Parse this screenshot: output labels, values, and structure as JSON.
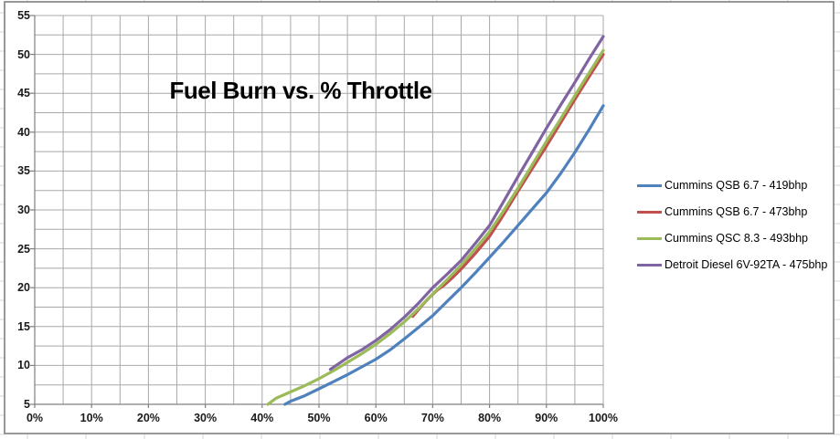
{
  "window": {
    "background_color": "#FFFFFF",
    "worksheet_gridline_color": "#D6D6D6",
    "chart_border_color": "#7F7F7F"
  },
  "colors": {
    "plot_gridline": "#A8A8A8",
    "axis_line": "#808080",
    "tick_mark": "#808080",
    "title_text": "#000000",
    "axis_label_text": "#1A1A1A",
    "legend_text": "#000000"
  },
  "chart_data": {
    "type": "line",
    "title": "Fuel Burn vs. % Throttle",
    "xlabel": "",
    "ylabel": "",
    "grid": "on",
    "legend_position": "right",
    "x_axis": {
      "min": 0,
      "max": 100,
      "tick_step_pct": 10,
      "gridline_step_pct": 5,
      "tick_labels": [
        "0%",
        "10%",
        "20%",
        "30%",
        "40%",
        "50%",
        "60%",
        "70%",
        "80%",
        "90%",
        "100%"
      ]
    },
    "y_axis": {
      "min": 5,
      "max": 55,
      "tick_step": 5,
      "gridline_step": 2.5,
      "tick_labels": [
        "5",
        "10",
        "15",
        "20",
        "25",
        "30",
        "35",
        "40",
        "45",
        "50",
        "55"
      ]
    },
    "series": [
      {
        "name": "Cummins QSB 6.7 - 419bhp",
        "color": "#4F81BD",
        "points": [
          [
            44,
            5.0
          ],
          [
            45,
            5.4
          ],
          [
            47.5,
            6.1
          ],
          [
            50,
            7.0
          ],
          [
            52.5,
            7.9
          ],
          [
            55,
            8.8
          ],
          [
            57.5,
            9.8
          ],
          [
            60,
            10.8
          ],
          [
            62.5,
            12.0
          ],
          [
            65,
            13.4
          ],
          [
            67.5,
            14.9
          ],
          [
            70,
            16.4
          ],
          [
            72.5,
            18.2
          ],
          [
            75,
            20.0
          ],
          [
            77.5,
            21.9
          ],
          [
            80,
            23.9
          ],
          [
            82.5,
            25.9
          ],
          [
            85,
            28.0
          ],
          [
            87.5,
            30.1
          ],
          [
            90,
            32.2
          ],
          [
            92.5,
            34.7
          ],
          [
            95,
            37.4
          ],
          [
            97.5,
            40.3
          ],
          [
            100,
            43.4
          ]
        ]
      },
      {
        "name": "Cummins QSB 6.7 - 473bhp",
        "color": "#C0504D",
        "points": [
          [
            66.5,
            16.3
          ],
          [
            68,
            17.6
          ],
          [
            69.5,
            18.8
          ],
          [
            70.8,
            19.7
          ],
          [
            72,
            20.3
          ],
          [
            73.5,
            21.3
          ],
          [
            75,
            22.4
          ],
          [
            77.5,
            24.4
          ],
          [
            80,
            26.6
          ],
          [
            82.5,
            29.4
          ],
          [
            85,
            32.4
          ],
          [
            87.5,
            35.3
          ],
          [
            90,
            38.2
          ],
          [
            92.5,
            41.2
          ],
          [
            95,
            44.2
          ],
          [
            97.5,
            47.1
          ],
          [
            100,
            50.0
          ]
        ]
      },
      {
        "name": "Cummins QSC 8.3 - 493bhp",
        "color": "#9BBB59",
        "points": [
          [
            41,
            5.0
          ],
          [
            42.5,
            5.8
          ],
          [
            45,
            6.6
          ],
          [
            47.5,
            7.4
          ],
          [
            50,
            8.3
          ],
          [
            52.5,
            9.3
          ],
          [
            55,
            10.4
          ],
          [
            57.5,
            11.5
          ],
          [
            60,
            12.7
          ],
          [
            62.5,
            14.1
          ],
          [
            65,
            15.6
          ],
          [
            67.5,
            17.3
          ],
          [
            70,
            19.2
          ],
          [
            72.5,
            21.0
          ],
          [
            75,
            22.9
          ],
          [
            77.5,
            25.0
          ],
          [
            80,
            27.2
          ],
          [
            82.5,
            29.9
          ],
          [
            85,
            32.8
          ],
          [
            87.5,
            35.8
          ],
          [
            90,
            38.8
          ],
          [
            92.5,
            41.7
          ],
          [
            95,
            44.7
          ],
          [
            97.5,
            47.6
          ],
          [
            100,
            50.5
          ]
        ]
      },
      {
        "name": "Detroit Diesel 6V-92TA - 475bhp",
        "color": "#8064A2",
        "points": [
          [
            52,
            9.5
          ],
          [
            55,
            11.0
          ],
          [
            57.5,
            12.0
          ],
          [
            60,
            13.2
          ],
          [
            62.5,
            14.6
          ],
          [
            65,
            16.2
          ],
          [
            67.5,
            18.0
          ],
          [
            70,
            20.0
          ],
          [
            72.5,
            21.7
          ],
          [
            75,
            23.5
          ],
          [
            77.5,
            25.7
          ],
          [
            80,
            28.0
          ],
          [
            82.5,
            31.1
          ],
          [
            85,
            34.3
          ],
          [
            87.5,
            37.4
          ],
          [
            90,
            40.5
          ],
          [
            92.5,
            43.5
          ],
          [
            95,
            46.4
          ],
          [
            97.5,
            49.4
          ],
          [
            100,
            52.3
          ]
        ]
      }
    ]
  }
}
